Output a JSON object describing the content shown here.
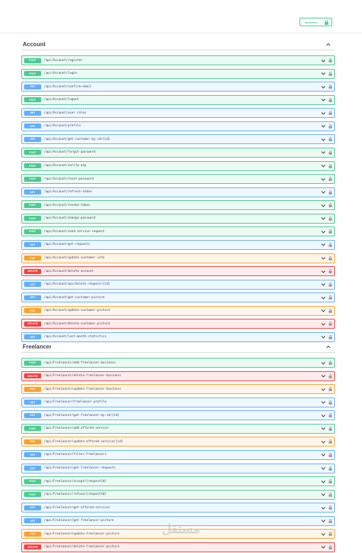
{
  "authorize": "Authorize",
  "method_colors": {
    "POST": "#49cc90",
    "GET": "#61affe",
    "PUT": "#fca130",
    "DELETE": "#f93e3e"
  },
  "sections": [
    {
      "name": "Account",
      "endpoints": [
        {
          "method": "POST",
          "path": "/api/Account/register"
        },
        {
          "method": "POST",
          "path": "/api/Account/login"
        },
        {
          "method": "GET",
          "path": "/api/Account/confirm-email"
        },
        {
          "method": "POST",
          "path": "/api/Account/logout"
        },
        {
          "method": "GET",
          "path": "/api/Account/user-roles"
        },
        {
          "method": "GET",
          "path": "/api/Account/profile"
        },
        {
          "method": "GET",
          "path": "/api/Account/get-customer-by-id/{id}"
        },
        {
          "method": "POST",
          "path": "/api/Account/forgot-password"
        },
        {
          "method": "POST",
          "path": "/api/Account/verify-otp"
        },
        {
          "method": "POST",
          "path": "/api/Account/reset-password"
        },
        {
          "method": "GET",
          "path": "/api/Account/refresh-token"
        },
        {
          "method": "POST",
          "path": "/api/Account/revoke-token"
        },
        {
          "method": "POST",
          "path": "/api/Account/change-password"
        },
        {
          "method": "POST",
          "path": "/api/Account/send-service-request"
        },
        {
          "method": "GET",
          "path": "/api/Account/get-requests"
        },
        {
          "method": "PUT",
          "path": "/api/Account/update-customer-info"
        },
        {
          "method": "DELETE",
          "path": "/api/Account/delete-account"
        },
        {
          "method": "GET",
          "path": "/api/Account/api/delete-request/{id}"
        },
        {
          "method": "GET",
          "path": "/api/Account/get-customer-picture"
        },
        {
          "method": "PUT",
          "path": "/api/Account/update-customer-picture"
        },
        {
          "method": "DELETE",
          "path": "/api/Account/delete-customer-picture"
        },
        {
          "method": "GET",
          "path": "/api/Account/last-month-statistics"
        }
      ]
    },
    {
      "name": "Freelancer",
      "endpoints": [
        {
          "method": "POST",
          "path": "/api/Freelancer/add-freelancer-business"
        },
        {
          "method": "DELETE",
          "path": "/api/Freelancer/delete-freelancer-business"
        },
        {
          "method": "PUT",
          "path": "/api/Freelancer/update-freelancer-business"
        },
        {
          "method": "GET",
          "path": "/api/Freelancer/freelancer-profile"
        },
        {
          "method": "GET",
          "path": "/api/Freelancer/get-freelancer-by-id/{id}"
        },
        {
          "method": "POST",
          "path": "/api/Freelancer/add-offered-service"
        },
        {
          "method": "PUT",
          "path": "/api/Freelancer/update-offered-service/{id}"
        },
        {
          "method": "GET",
          "path": "/api/Freelancer/filter-freelancers"
        },
        {
          "method": "GET",
          "path": "/api/Freelancer/get-freelancer-requests"
        },
        {
          "method": "POST",
          "path": "/api/Freelancer/accept/{requestId}"
        },
        {
          "method": "POST",
          "path": "/api/Freelancer/refuse/{requestId}"
        },
        {
          "method": "GET",
          "path": "/api/Freelancer/get-offered-services"
        },
        {
          "method": "GET",
          "path": "/api/Freelancer/get-freelancer-picture"
        },
        {
          "method": "PUT",
          "path": "/api/Freelancer/update-freelancer-picture"
        },
        {
          "method": "DELETE",
          "path": "/api/Freelancer/delete-freelancer-picture"
        }
      ]
    }
  ]
}
